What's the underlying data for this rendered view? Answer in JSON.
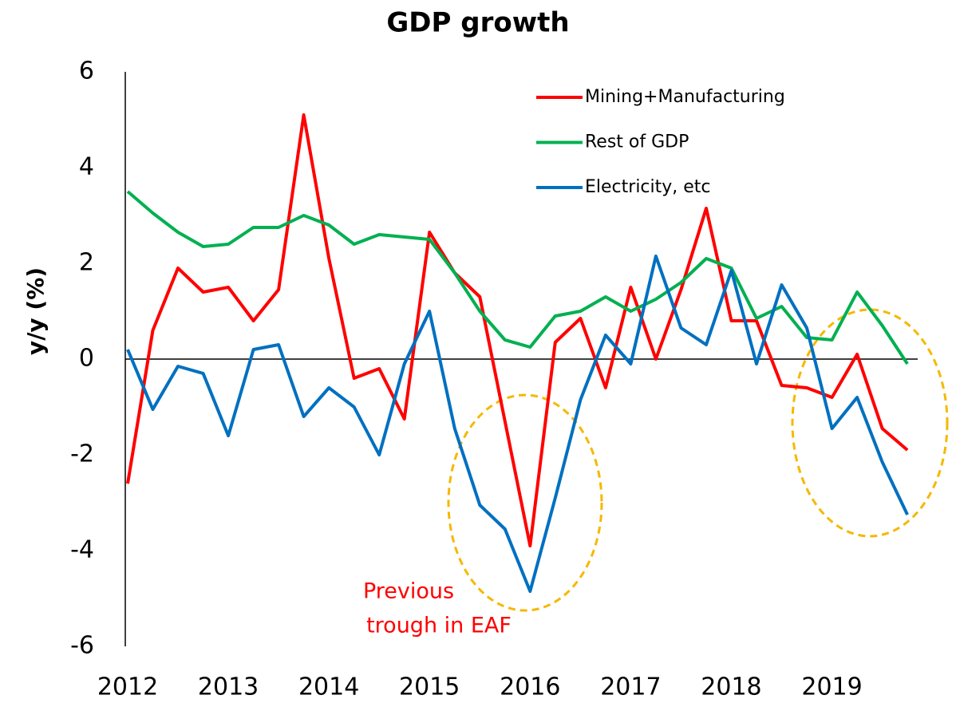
{
  "chart_data": {
    "type": "line",
    "title": "GDP growth",
    "y_label": "y/y (%)",
    "annotation": [
      "Previous",
      "trough in EAF"
    ],
    "categories": [
      "2012",
      null,
      null,
      null,
      "2013",
      null,
      null,
      null,
      "2014",
      null,
      null,
      null,
      "2015",
      null,
      null,
      null,
      "2016",
      null,
      null,
      null,
      "2017",
      null,
      null,
      null,
      "2018",
      null,
      null,
      null,
      "2019",
      null,
      null,
      null
    ],
    "series": [
      {
        "name": "Mining+Manufacturing",
        "color": "#ff0000",
        "values": [
          -2.6,
          0.6,
          1.9,
          1.4,
          1.5,
          0.8,
          1.45,
          5.1,
          2.1,
          -0.4,
          -0.2,
          -1.25,
          2.65,
          1.8,
          1.3,
          -1.3,
          -3.9,
          0.35,
          0.85,
          -0.6,
          1.5,
          0,
          1.45,
          3.15,
          0.8,
          0.8,
          -0.55,
          -0.6,
          -0.8,
          0.1,
          -1.45,
          -1.9
        ]
      },
      {
        "name": "Rest of GDP",
        "color": "#00b050",
        "values": [
          3.5,
          3.05,
          2.65,
          2.35,
          2.4,
          2.75,
          2.75,
          3.0,
          2.8,
          2.4,
          2.6,
          2.55,
          2.5,
          1.8,
          1.0,
          0.4,
          0.25,
          0.9,
          1.0,
          1.3,
          1.0,
          1.25,
          1.6,
          2.1,
          1.9,
          0.85,
          1.1,
          0.45,
          0.4,
          1.4,
          0.7,
          -0.1
        ]
      },
      {
        "name": "Electricity, etc",
        "color": "#0070c0",
        "values": [
          0.2,
          -1.05,
          -0.15,
          -0.3,
          -1.6,
          0.2,
          0.3,
          -1.2,
          -0.6,
          -1.0,
          -2.0,
          -0.1,
          1.0,
          -1.45,
          -3.05,
          -3.55,
          -4.85,
          -2.9,
          -0.85,
          0.5,
          -0.1,
          2.15,
          0.65,
          0.3,
          1.85,
          -0.1,
          1.55,
          0.65,
          -1.45,
          -0.8,
          -2.15,
          -3.25
        ]
      }
    ],
    "ylim": [
      -6,
      6
    ],
    "yticks": [
      -6,
      -4,
      -2,
      0,
      2,
      4,
      6
    ],
    "grid": false,
    "legend": "upper right"
  }
}
